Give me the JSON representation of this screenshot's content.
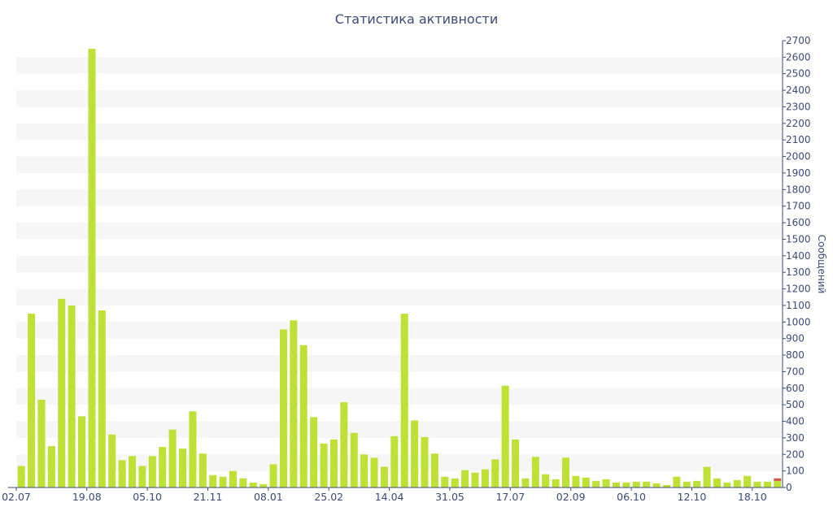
{
  "chart_data": {
    "type": "bar",
    "title": "Статистика активности",
    "ylabel": "Сообщений",
    "ylim": [
      0,
      2700
    ],
    "ytick_step": 100,
    "grid": "horizontal-bands",
    "bar_color": "#bde134",
    "highlight_color": "#d9534f",
    "band_color": "#f6f6f6",
    "text_color": "#3a4a7a",
    "xtick_labels": [
      "02.07",
      "19.08",
      "05.10",
      "21.11",
      "08.01",
      "25.02",
      "14.04",
      "31.05",
      "17.07",
      "02.09",
      "06.10",
      "12.10",
      "18.10"
    ],
    "xtick_bar_index": [
      0,
      7,
      13,
      19,
      25,
      31,
      37,
      43,
      49,
      55,
      61,
      67,
      73
    ],
    "values": [
      130,
      1050,
      530,
      250,
      1140,
      1100,
      430,
      2650,
      1070,
      320,
      165,
      190,
      130,
      190,
      245,
      350,
      235,
      460,
      205,
      75,
      65,
      100,
      55,
      30,
      20,
      140,
      955,
      1010,
      860,
      425,
      265,
      290,
      515,
      330,
      200,
      180,
      125,
      310,
      1050,
      405,
      305,
      205,
      65,
      55,
      105,
      90,
      110,
      170,
      615,
      290,
      55,
      185,
      80,
      50,
      180,
      70,
      60,
      40,
      50,
      30,
      30,
      35,
      35,
      25,
      15,
      65,
      35,
      40,
      125,
      55,
      30,
      45,
      70,
      35,
      35,
      55
    ],
    "highlight_last_value": 15
  }
}
